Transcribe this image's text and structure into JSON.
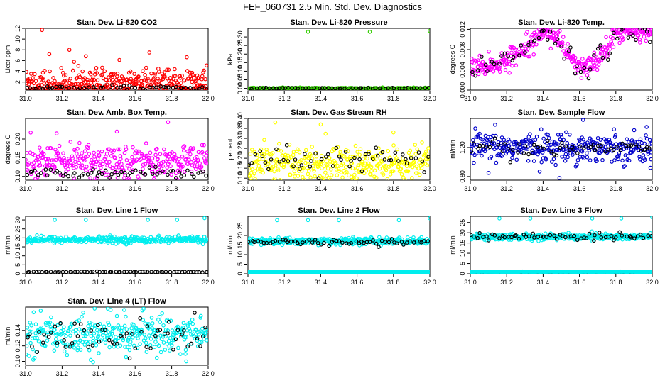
{
  "figure": {
    "title": "FEF_060731  2.5 Min. Std. Dev. Diagnostics"
  },
  "chart_data": [
    {
      "type": "scatter",
      "title": "Stan. Dev. Li-820 CO2",
      "xlabel": "",
      "ylabel": "Licor ppm",
      "xlim": [
        31.0,
        32.0
      ],
      "ylim": [
        0.5,
        12
      ],
      "xticks": [
        "31.0",
        "31.2",
        "31.4",
        "31.6",
        "31.8",
        "32.0"
      ],
      "yticks": [
        2,
        4,
        6,
        8,
        10,
        12
      ],
      "series": [
        {
          "name": "primary",
          "color": "#ff0000",
          "center": 1.8,
          "spread": 1.5,
          "min": 0.5,
          "max": 12,
          "outliers": [
            {
              "x": 31.09,
              "y": 11.7
            },
            {
              "x": 31.24,
              "y": 8.0
            },
            {
              "x": 31.13,
              "y": 7.2
            },
            {
              "x": 31.33,
              "y": 6.8
            },
            {
              "x": 31.94,
              "y": 3.2
            }
          ]
        },
        {
          "name": "secondary",
          "color": "#000000",
          "center": 0.9,
          "spread": 0.2,
          "min": 0.5,
          "max": 12,
          "outliers": []
        }
      ]
    },
    {
      "type": "scatter",
      "title": "Stan. Dev. Li-820 Pressure",
      "xlabel": "",
      "ylabel": "kPa",
      "xlim": [
        31.0,
        32.0
      ],
      "ylim": [
        -0.01,
        0.35
      ],
      "xticks": [
        "31.0",
        "31.2",
        "31.4",
        "31.6",
        "31.8",
        "32.0"
      ],
      "yticks": [
        0.0,
        0.05,
        0.1,
        0.15,
        0.2,
        0.25,
        0.3
      ],
      "series": [
        {
          "name": "primary",
          "color": "#33cc00",
          "center": 0.0,
          "spread": 0.002,
          "min": -0.01,
          "max": 0.35,
          "outliers": [
            {
              "x": 31.33,
              "y": 0.33
            },
            {
              "x": 31.67,
              "y": 0.33
            },
            {
              "x": 32.0,
              "y": 0.335
            }
          ]
        },
        {
          "name": "secondary",
          "color": "#000000",
          "center": 0.0,
          "spread": 0.002,
          "min": -0.01,
          "max": 0.35,
          "outliers": []
        }
      ]
    },
    {
      "type": "scatter",
      "title": "Stan. Dev. Li-820 Temp.",
      "xlabel": "",
      "ylabel": "degrees C",
      "xlim": [
        31.0,
        32.0
      ],
      "ylim": [
        0.0,
        0.0122
      ],
      "xticks": [
        "31.0",
        "31.2",
        "31.4",
        "31.6",
        "31.8",
        "32.0"
      ],
      "yticks": [
        0.0,
        0.004,
        0.008,
        0.012
      ],
      "series": [
        {
          "name": "primary",
          "color": "#ff00ff",
          "center": 0.006,
          "spread": 0.001,
          "min": 0.0,
          "max": 0.0122,
          "profile": [
            [
              31.0,
              0.0045
            ],
            [
              31.15,
              0.005
            ],
            [
              31.25,
              0.007
            ],
            [
              31.38,
              0.0115
            ],
            [
              31.45,
              0.011
            ],
            [
              31.5,
              0.009
            ],
            [
              31.6,
              0.004
            ],
            [
              31.7,
              0.006
            ],
            [
              31.8,
              0.0115
            ],
            [
              32.0,
              0.0115
            ]
          ],
          "outliers": []
        },
        {
          "name": "secondary",
          "color": "#000000",
          "center": 0.006,
          "spread": 0.0012,
          "min": 0.0,
          "max": 0.0122,
          "profile": [
            [
              31.0,
              0.0045
            ],
            [
              31.15,
              0.005
            ],
            [
              31.25,
              0.007
            ],
            [
              31.38,
              0.0115
            ],
            [
              31.45,
              0.011
            ],
            [
              31.5,
              0.009
            ],
            [
              31.6,
              0.004
            ],
            [
              31.7,
              0.006
            ],
            [
              31.8,
              0.0115
            ],
            [
              32.0,
              0.0115
            ]
          ],
          "outliers": []
        }
      ]
    },
    {
      "type": "scatter",
      "title": "Stan. Dev. Amb. Box Temp.",
      "xlabel": "",
      "ylabel": "degrees C",
      "xlim": [
        31.0,
        32.0
      ],
      "ylim": [
        0.09,
        0.255
      ],
      "xticks": [
        "31.0",
        "31.2",
        "31.4",
        "31.6",
        "31.8",
        "32.0"
      ],
      "yticks": [
        0.1,
        0.15,
        0.2
      ],
      "series": [
        {
          "name": "primary",
          "color": "#ff00ff",
          "center": 0.14,
          "spread": 0.022,
          "min": 0.09,
          "max": 0.255,
          "outliers": [
            {
              "x": 31.78,
              "y": 0.245
            },
            {
              "x": 31.17,
              "y": 0.215
            },
            {
              "x": 31.5,
              "y": 0.22
            }
          ]
        },
        {
          "name": "secondary",
          "color": "#000000",
          "center": 0.11,
          "spread": 0.006,
          "min": 0.09,
          "max": 0.255,
          "outliers": []
        }
      ]
    },
    {
      "type": "scatter",
      "title": "Stan. Dev. Gas Stream RH",
      "xlabel": "",
      "ylabel": "percent",
      "xlim": [
        31.0,
        32.0
      ],
      "ylim": [
        0.09,
        0.4
      ],
      "xticks": [
        "31.0",
        "31.2",
        "31.4",
        "31.6",
        "31.8",
        "32.0"
      ],
      "yticks": [
        0.1,
        0.15,
        0.2,
        0.25,
        0.3,
        0.35,
        0.4
      ],
      "series": [
        {
          "name": "primary",
          "color": "#ffff00",
          "center": 0.17,
          "spread": 0.045,
          "min": 0.09,
          "max": 0.4,
          "outliers": [
            {
              "x": 31.15,
              "y": 0.38
            },
            {
              "x": 31.4,
              "y": 0.37
            },
            {
              "x": 31.8,
              "y": 0.33
            }
          ]
        },
        {
          "name": "secondary",
          "color": "#000000",
          "center": 0.19,
          "spread": 0.03,
          "min": 0.09,
          "max": 0.4,
          "outliers": []
        }
      ]
    },
    {
      "type": "scatter",
      "title": "Stan. Dev. Sample Flow",
      "xlabel": "",
      "ylabel": "ml/min",
      "xlim": [
        31.0,
        32.0
      ],
      "ylim": [
        0.75,
        1.6
      ],
      "xticks": [
        "31.0",
        "31.2",
        "31.4",
        "31.6",
        "31.8",
        "32.0"
      ],
      "yticks": [
        0.8,
        1.2
      ],
      "series": [
        {
          "name": "primary",
          "color": "#0000cc",
          "center": 1.2,
          "spread": 0.1,
          "min": 0.75,
          "max": 1.6,
          "outliers": [
            {
              "x": 31.1,
              "y": 0.85
            },
            {
              "x": 31.49,
              "y": 0.78
            },
            {
              "x": 31.99,
              "y": 0.92
            },
            {
              "x": 31.62,
              "y": 1.58
            }
          ]
        },
        {
          "name": "secondary",
          "color": "#000000",
          "center": 1.2,
          "spread": 0.06,
          "min": 0.75,
          "max": 1.6,
          "outliers": []
        }
      ]
    },
    {
      "type": "scatter",
      "title": "Stan. Dev. Line 1 Flow",
      "xlabel": "",
      "ylabel": "ml/min",
      "xlim": [
        31.0,
        32.0
      ],
      "ylim": [
        0,
        32
      ],
      "xticks": [
        "31.0",
        "31.2",
        "31.4",
        "31.6",
        "31.8",
        "32.0"
      ],
      "yticks": [
        0,
        5,
        10,
        15,
        20,
        25,
        30
      ],
      "series": [
        {
          "name": "primary",
          "color": "#00eeee",
          "center": 19,
          "spread": 0.9,
          "min": 0,
          "max": 32,
          "outliers": [
            {
              "x": 31.16,
              "y": 30
            },
            {
              "x": 31.33,
              "y": 30
            },
            {
              "x": 31.67,
              "y": 30
            },
            {
              "x": 31.83,
              "y": 30
            },
            {
              "x": 31.98,
              "y": 31
            }
          ]
        },
        {
          "name": "secondary",
          "color": "#000000",
          "center": 1,
          "spread": 0.1,
          "min": 0,
          "max": 32,
          "outliers": []
        }
      ]
    },
    {
      "type": "scatter",
      "title": "Stan. Dev. Line 2 Flow",
      "xlabel": "",
      "ylabel": "ml/min",
      "xlim": [
        31.0,
        32.0
      ],
      "ylim": [
        0,
        30
      ],
      "xticks": [
        "31.0",
        "31.2",
        "31.4",
        "31.6",
        "31.8",
        "32.0"
      ],
      "yticks": [
        0,
        5,
        10,
        15,
        20,
        25
      ],
      "series": [
        {
          "name": "primary",
          "color": "#00eeee",
          "center": 17,
          "spread": 0.9,
          "min": 0,
          "max": 30,
          "outliers": [
            {
              "x": 31.16,
              "y": 28
            },
            {
              "x": 31.33,
              "y": 28
            },
            {
              "x": 31.5,
              "y": 28
            },
            {
              "x": 31.83,
              "y": 28
            },
            {
              "x": 32.0,
              "y": 29
            }
          ]
        },
        {
          "name": "baseline",
          "color": "#00eeee",
          "center": 1,
          "spread": 0.05,
          "min": 0,
          "max": 30,
          "outliers": []
        },
        {
          "name": "secondary",
          "color": "#000000",
          "center": 16.5,
          "spread": 0.8,
          "min": 0,
          "max": 30,
          "outliers": []
        }
      ]
    },
    {
      "type": "scatter",
      "title": "Stan. Dev. Line 3 Flow",
      "xlabel": "",
      "ylabel": "ml/min",
      "xlim": [
        31.0,
        32.0
      ],
      "ylim": [
        0,
        28
      ],
      "xticks": [
        "31.0",
        "31.2",
        "31.4",
        "31.6",
        "31.8",
        "32.0"
      ],
      "yticks": [
        0,
        5,
        10,
        15,
        20,
        25
      ],
      "series": [
        {
          "name": "primary",
          "color": "#00eeee",
          "center": 18,
          "spread": 0.8,
          "min": 0,
          "max": 28,
          "outliers": [
            {
              "x": 31.16,
              "y": 27
            },
            {
              "x": 31.33,
              "y": 27
            },
            {
              "x": 31.67,
              "y": 27
            },
            {
              "x": 31.83,
              "y": 27
            },
            {
              "x": 32.0,
              "y": 27.5
            }
          ]
        },
        {
          "name": "baseline",
          "color": "#00eeee",
          "center": 1,
          "spread": 0.05,
          "min": 0,
          "max": 28,
          "outliers": []
        },
        {
          "name": "secondary",
          "color": "#000000",
          "center": 18,
          "spread": 0.9,
          "min": 0,
          "max": 28,
          "outliers": []
        }
      ]
    },
    {
      "type": "scatter",
      "title": "Stan. Dev. Line 4 (LT) Flow",
      "xlabel": "",
      "ylabel": "ml/min",
      "xlim": [
        31.0,
        32.0
      ],
      "ylim": [
        0.095,
        0.17
      ],
      "xticks": [
        "31.0",
        "31.2",
        "31.4",
        "31.6",
        "31.8",
        "32.0"
      ],
      "yticks": [
        0.1,
        0.12,
        0.14
      ],
      "series": [
        {
          "name": "primary",
          "color": "#00eeee",
          "center": 0.135,
          "spread": 0.012,
          "min": 0.095,
          "max": 0.17,
          "outliers": [
            {
              "x": 31.37,
              "y": 0.099
            },
            {
              "x": 31.88,
              "y": 0.1
            },
            {
              "x": 31.45,
              "y": 0.168
            }
          ]
        },
        {
          "name": "secondary",
          "color": "#000000",
          "center": 0.133,
          "spread": 0.012,
          "min": 0.095,
          "max": 0.17,
          "outliers": []
        }
      ]
    }
  ]
}
